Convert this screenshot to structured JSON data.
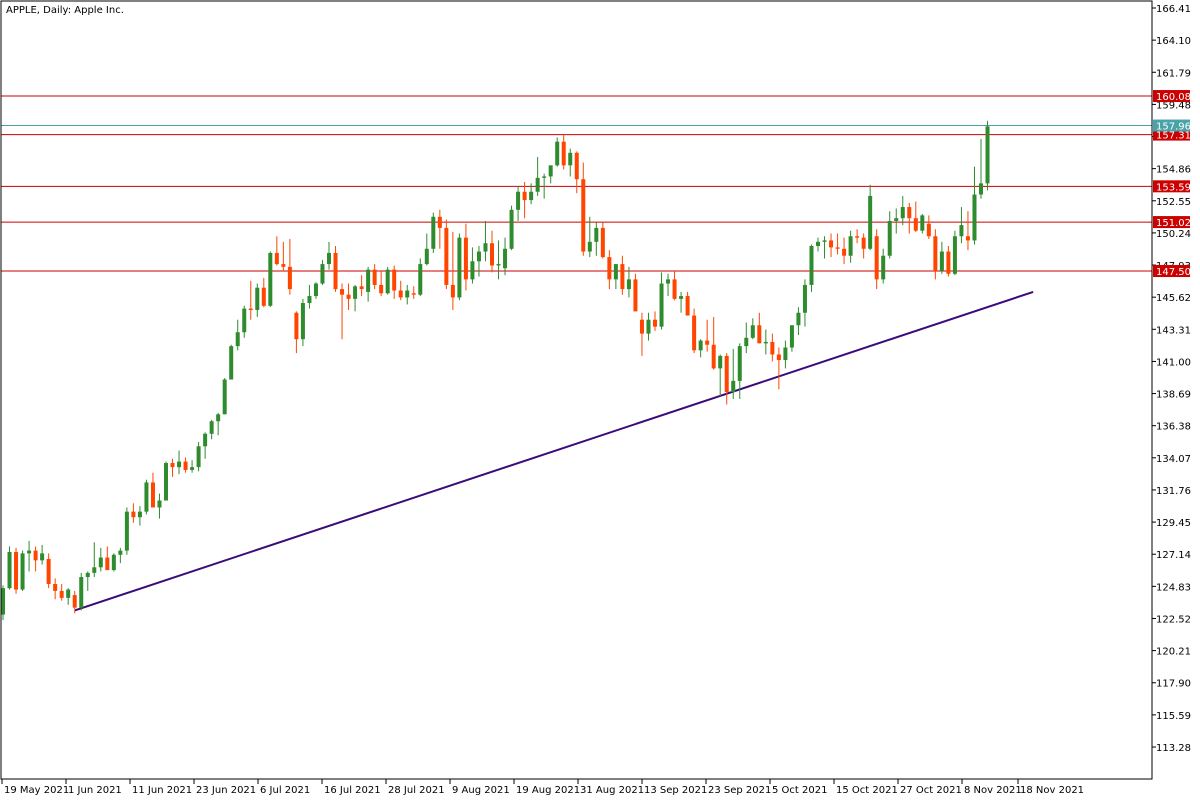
{
  "chart_data": {
    "type": "candlestick",
    "title": "APPLE, Daily:  Apple Inc.",
    "ylim": [
      111.0,
      167.2
    ],
    "y_ticks": [
      "166.41",
      "164.10",
      "161.79",
      "159.48",
      "157.17",
      "154.86",
      "152.55",
      "150.24",
      "147.93",
      "145.62",
      "143.31",
      "141.00",
      "138.69",
      "136.38",
      "134.07",
      "131.76",
      "129.45",
      "127.14",
      "124.83",
      "122.52",
      "120.21",
      "117.90",
      "115.59",
      "113.28"
    ],
    "x_labels": [
      "19 May 2021",
      "1 Jun 2021",
      "11 Jun 2021",
      "23 Jun 2021",
      "6 Jul 2021",
      "16 Jul 2021",
      "28 Jul 2021",
      "9 Aug 2021",
      "19 Aug 2021",
      "31 Aug 2021",
      "13 Sep 2021",
      "23 Sep 2021",
      "5 Oct 2021",
      "15 Oct 2021",
      "27 Oct 2021",
      "8 Nov 2021",
      "18 Nov 2021"
    ],
    "candles": [
      {
        "o": 122.8,
        "h": 124.9,
        "l": 122.4,
        "c": 124.7
      },
      {
        "o": 124.7,
        "h": 127.7,
        "l": 124.6,
        "c": 127.3
      },
      {
        "o": 127.3,
        "h": 127.6,
        "l": 124.3,
        "c": 124.6
      },
      {
        "o": 124.6,
        "h": 127.4,
        "l": 124.5,
        "c": 127.2
      },
      {
        "o": 127.2,
        "h": 128.1,
        "l": 125.9,
        "c": 127.4
      },
      {
        "o": 127.4,
        "h": 127.7,
        "l": 125.9,
        "c": 126.7
      },
      {
        "o": 126.7,
        "h": 127.8,
        "l": 126.4,
        "c": 127.2
      },
      {
        "o": 126.8,
        "h": 127.2,
        "l": 124.7,
        "c": 125.0
      },
      {
        "o": 125.0,
        "h": 125.4,
        "l": 123.9,
        "c": 124.5
      },
      {
        "o": 124.5,
        "h": 125.0,
        "l": 123.8,
        "c": 124.0
      },
      {
        "o": 124.0,
        "h": 124.7,
        "l": 123.5,
        "c": 124.6
      },
      {
        "o": 124.2,
        "h": 124.5,
        "l": 122.9,
        "c": 123.3
      },
      {
        "o": 123.3,
        "h": 125.8,
        "l": 123.1,
        "c": 125.5
      },
      {
        "o": 125.5,
        "h": 125.9,
        "l": 124.5,
        "c": 125.8
      },
      {
        "o": 125.8,
        "h": 128.0,
        "l": 125.5,
        "c": 126.2
      },
      {
        "o": 126.2,
        "h": 127.6,
        "l": 125.9,
        "c": 126.9
      },
      {
        "o": 126.9,
        "h": 127.7,
        "l": 126.0,
        "c": 126.0
      },
      {
        "o": 126.0,
        "h": 127.2,
        "l": 125.9,
        "c": 127.1
      },
      {
        "o": 127.1,
        "h": 127.6,
        "l": 126.5,
        "c": 127.4
      },
      {
        "o": 127.4,
        "h": 130.5,
        "l": 127.1,
        "c": 130.2
      },
      {
        "o": 130.2,
        "h": 130.8,
        "l": 129.4,
        "c": 129.8
      },
      {
        "o": 129.8,
        "h": 130.6,
        "l": 129.2,
        "c": 130.2
      },
      {
        "o": 130.2,
        "h": 132.5,
        "l": 130.0,
        "c": 132.3
      },
      {
        "o": 132.3,
        "h": 133.0,
        "l": 130.6,
        "c": 130.5
      },
      {
        "o": 130.5,
        "h": 131.5,
        "l": 129.7,
        "c": 131.0
      },
      {
        "o": 131.0,
        "h": 133.8,
        "l": 131.0,
        "c": 133.7
      },
      {
        "o": 133.7,
        "h": 134.0,
        "l": 132.7,
        "c": 133.4
      },
      {
        "o": 133.4,
        "h": 134.6,
        "l": 132.9,
        "c": 133.8
      },
      {
        "o": 133.8,
        "h": 134.1,
        "l": 133.0,
        "c": 133.2
      },
      {
        "o": 133.2,
        "h": 133.9,
        "l": 133.0,
        "c": 133.4
      },
      {
        "o": 133.4,
        "h": 135.2,
        "l": 133.1,
        "c": 134.9
      },
      {
        "o": 134.9,
        "h": 135.9,
        "l": 134.0,
        "c": 135.8
      },
      {
        "o": 135.8,
        "h": 136.8,
        "l": 135.4,
        "c": 136.7
      },
      {
        "o": 136.7,
        "h": 137.3,
        "l": 135.7,
        "c": 137.2
      },
      {
        "o": 137.2,
        "h": 139.8,
        "l": 137.2,
        "c": 139.7
      },
      {
        "o": 139.7,
        "h": 142.2,
        "l": 139.7,
        "c": 142.1
      },
      {
        "o": 142.1,
        "h": 144.0,
        "l": 141.8,
        "c": 143.1
      },
      {
        "o": 143.1,
        "h": 145.0,
        "l": 142.7,
        "c": 144.8
      },
      {
        "o": 144.8,
        "h": 146.8,
        "l": 144.0,
        "c": 144.7
      },
      {
        "o": 144.7,
        "h": 146.6,
        "l": 144.2,
        "c": 146.3
      },
      {
        "o": 146.3,
        "h": 147.0,
        "l": 144.9,
        "c": 145.0
      },
      {
        "o": 145.0,
        "h": 148.9,
        "l": 144.9,
        "c": 148.8
      },
      {
        "o": 148.8,
        "h": 150.0,
        "l": 147.9,
        "c": 148.0
      },
      {
        "o": 148.0,
        "h": 149.6,
        "l": 147.5,
        "c": 147.8
      },
      {
        "o": 147.8,
        "h": 149.8,
        "l": 145.8,
        "c": 146.2
      },
      {
        "o": 144.5,
        "h": 144.6,
        "l": 141.6,
        "c": 142.6
      },
      {
        "o": 142.6,
        "h": 145.5,
        "l": 142.1,
        "c": 145.2
      },
      {
        "o": 145.2,
        "h": 146.5,
        "l": 144.8,
        "c": 145.7
      },
      {
        "o": 145.7,
        "h": 146.7,
        "l": 145.5,
        "c": 146.6
      },
      {
        "o": 146.6,
        "h": 148.3,
        "l": 146.5,
        "c": 148.0
      },
      {
        "o": 148.0,
        "h": 149.6,
        "l": 147.6,
        "c": 148.8
      },
      {
        "o": 148.8,
        "h": 149.3,
        "l": 146.0,
        "c": 146.2
      },
      {
        "o": 146.2,
        "h": 146.6,
        "l": 142.6,
        "c": 145.8
      },
      {
        "o": 145.8,
        "h": 146.6,
        "l": 144.7,
        "c": 145.5
      },
      {
        "o": 145.5,
        "h": 146.5,
        "l": 144.6,
        "c": 146.4
      },
      {
        "o": 146.4,
        "h": 147.2,
        "l": 145.7,
        "c": 146.2
      },
      {
        "o": 146.0,
        "h": 147.8,
        "l": 145.3,
        "c": 147.6
      },
      {
        "o": 147.6,
        "h": 148.0,
        "l": 146.2,
        "c": 146.5
      },
      {
        "o": 146.5,
        "h": 147.5,
        "l": 145.7,
        "c": 145.9
      },
      {
        "o": 145.9,
        "h": 147.8,
        "l": 145.8,
        "c": 147.6
      },
      {
        "o": 147.6,
        "h": 147.9,
        "l": 145.5,
        "c": 146.1
      },
      {
        "o": 146.1,
        "h": 146.8,
        "l": 145.4,
        "c": 145.6
      },
      {
        "o": 145.6,
        "h": 146.5,
        "l": 145.1,
        "c": 146.1
      },
      {
        "o": 145.9,
        "h": 146.4,
        "l": 145.5,
        "c": 145.8
      },
      {
        "o": 145.8,
        "h": 148.4,
        "l": 145.7,
        "c": 148.0
      },
      {
        "o": 148.0,
        "h": 150.2,
        "l": 147.9,
        "c": 149.1
      },
      {
        "o": 149.1,
        "h": 151.7,
        "l": 148.8,
        "c": 151.4
      },
      {
        "o": 151.4,
        "h": 151.9,
        "l": 149.1,
        "c": 150.6
      },
      {
        "o": 150.6,
        "h": 151.2,
        "l": 146.2,
        "c": 146.5
      },
      {
        "o": 146.5,
        "h": 150.3,
        "l": 144.7,
        "c": 145.6
      },
      {
        "o": 145.6,
        "h": 150.2,
        "l": 145.4,
        "c": 149.9
      },
      {
        "o": 149.9,
        "h": 150.9,
        "l": 146.1,
        "c": 146.9
      },
      {
        "o": 146.9,
        "h": 149.2,
        "l": 146.6,
        "c": 148.2
      },
      {
        "o": 148.2,
        "h": 149.3,
        "l": 147.1,
        "c": 148.9
      },
      {
        "o": 148.9,
        "h": 151.1,
        "l": 148.2,
        "c": 149.5
      },
      {
        "o": 149.5,
        "h": 150.4,
        "l": 147.4,
        "c": 147.9
      },
      {
        "o": 147.9,
        "h": 149.7,
        "l": 146.9,
        "c": 148.0
      },
      {
        "o": 147.7,
        "h": 149.9,
        "l": 147.2,
        "c": 149.1
      },
      {
        "o": 149.1,
        "h": 152.2,
        "l": 149.0,
        "c": 151.9
      },
      {
        "o": 151.9,
        "h": 153.6,
        "l": 151.1,
        "c": 153.2
      },
      {
        "o": 153.2,
        "h": 153.9,
        "l": 151.3,
        "c": 152.6
      },
      {
        "o": 152.6,
        "h": 153.8,
        "l": 152.3,
        "c": 153.2
      },
      {
        "o": 153.2,
        "h": 155.7,
        "l": 152.9,
        "c": 154.2
      },
      {
        "o": 154.2,
        "h": 154.5,
        "l": 152.7,
        "c": 154.3
      },
      {
        "o": 154.3,
        "h": 155.0,
        "l": 153.8,
        "c": 155.1
      },
      {
        "o": 155.1,
        "h": 157.1,
        "l": 155.0,
        "c": 156.8
      },
      {
        "o": 156.8,
        "h": 157.3,
        "l": 154.8,
        "c": 155.1
      },
      {
        "o": 155.1,
        "h": 156.3,
        "l": 154.3,
        "c": 156.0
      },
      {
        "o": 156.0,
        "h": 156.1,
        "l": 153.1,
        "c": 154.1
      },
      {
        "o": 154.1,
        "h": 155.3,
        "l": 148.6,
        "c": 148.9
      },
      {
        "o": 148.9,
        "h": 151.4,
        "l": 148.5,
        "c": 149.6
      },
      {
        "o": 149.6,
        "h": 151.0,
        "l": 148.6,
        "c": 150.6
      },
      {
        "o": 150.6,
        "h": 151.0,
        "l": 148.4,
        "c": 148.5
      },
      {
        "o": 148.5,
        "h": 149.0,
        "l": 146.2,
        "c": 146.9
      },
      {
        "o": 146.9,
        "h": 148.0,
        "l": 146.2,
        "c": 148.0
      },
      {
        "o": 148.0,
        "h": 148.6,
        "l": 145.8,
        "c": 146.2
      },
      {
        "o": 146.2,
        "h": 147.8,
        "l": 145.6,
        "c": 146.9
      },
      {
        "o": 146.9,
        "h": 147.3,
        "l": 144.6,
        "c": 144.6
      },
      {
        "o": 144.0,
        "h": 144.5,
        "l": 141.4,
        "c": 143.0
      },
      {
        "o": 143.0,
        "h": 144.5,
        "l": 142.5,
        "c": 144.0
      },
      {
        "o": 144.0,
        "h": 144.6,
        "l": 143.2,
        "c": 143.5
      },
      {
        "o": 143.5,
        "h": 147.4,
        "l": 143.3,
        "c": 146.6
      },
      {
        "o": 146.6,
        "h": 147.3,
        "l": 145.7,
        "c": 146.9
      },
      {
        "o": 146.9,
        "h": 147.5,
        "l": 145.4,
        "c": 145.5
      },
      {
        "o": 145.5,
        "h": 146.0,
        "l": 144.5,
        "c": 145.7
      },
      {
        "o": 145.7,
        "h": 146.0,
        "l": 144.3,
        "c": 144.3
      },
      {
        "o": 144.3,
        "h": 144.8,
        "l": 141.6,
        "c": 141.8
      },
      {
        "o": 141.8,
        "h": 142.6,
        "l": 141.3,
        "c": 142.5
      },
      {
        "o": 142.5,
        "h": 144.0,
        "l": 141.7,
        "c": 142.2
      },
      {
        "o": 142.2,
        "h": 144.2,
        "l": 140.4,
        "c": 140.5
      },
      {
        "o": 140.5,
        "h": 141.5,
        "l": 138.5,
        "c": 141.4
      },
      {
        "o": 141.4,
        "h": 141.6,
        "l": 137.9,
        "c": 138.8
      },
      {
        "o": 138.8,
        "h": 141.9,
        "l": 138.3,
        "c": 139.6
      },
      {
        "o": 139.6,
        "h": 142.3,
        "l": 138.3,
        "c": 142.1
      },
      {
        "o": 142.1,
        "h": 143.8,
        "l": 141.6,
        "c": 142.7
      },
      {
        "o": 142.7,
        "h": 144.1,
        "l": 142.6,
        "c": 143.6
      },
      {
        "o": 143.6,
        "h": 144.5,
        "l": 142.3,
        "c": 142.3
      },
      {
        "o": 142.3,
        "h": 143.3,
        "l": 141.5,
        "c": 142.4
      },
      {
        "o": 142.4,
        "h": 143.0,
        "l": 141.0,
        "c": 141.5
      },
      {
        "o": 141.5,
        "h": 142.0,
        "l": 139.0,
        "c": 141.1
      },
      {
        "o": 141.1,
        "h": 142.5,
        "l": 140.5,
        "c": 142.0
      },
      {
        "o": 142.0,
        "h": 143.6,
        "l": 141.7,
        "c": 143.6
      },
      {
        "o": 143.6,
        "h": 144.9,
        "l": 142.9,
        "c": 144.5
      },
      {
        "o": 144.5,
        "h": 146.9,
        "l": 143.5,
        "c": 146.5
      },
      {
        "o": 146.5,
        "h": 149.4,
        "l": 146.0,
        "c": 149.3
      },
      {
        "o": 149.3,
        "h": 149.9,
        "l": 148.9,
        "c": 149.6
      },
      {
        "o": 149.6,
        "h": 150.0,
        "l": 148.4,
        "c": 149.7
      },
      {
        "o": 149.7,
        "h": 150.2,
        "l": 148.5,
        "c": 149.2
      },
      {
        "o": 149.2,
        "h": 150.2,
        "l": 148.7,
        "c": 149.1
      },
      {
        "o": 149.1,
        "h": 149.9,
        "l": 148.0,
        "c": 148.6
      },
      {
        "o": 148.6,
        "h": 150.4,
        "l": 148.1,
        "c": 150.0
      },
      {
        "o": 150.0,
        "h": 150.5,
        "l": 149.5,
        "c": 149.9
      },
      {
        "o": 149.9,
        "h": 150.2,
        "l": 148.4,
        "c": 149.1
      },
      {
        "o": 149.1,
        "h": 153.7,
        "l": 149.0,
        "c": 152.9
      },
      {
        "o": 150.0,
        "h": 150.5,
        "l": 146.2,
        "c": 146.9
      },
      {
        "o": 146.9,
        "h": 149.1,
        "l": 146.6,
        "c": 148.6
      },
      {
        "o": 148.6,
        "h": 151.8,
        "l": 148.4,
        "c": 151.1
      },
      {
        "o": 151.1,
        "h": 152.0,
        "l": 150.2,
        "c": 151.3
      },
      {
        "o": 151.3,
        "h": 152.9,
        "l": 150.8,
        "c": 152.1
      },
      {
        "o": 152.1,
        "h": 152.4,
        "l": 150.2,
        "c": 151.3
      },
      {
        "o": 151.3,
        "h": 152.5,
        "l": 150.3,
        "c": 150.4
      },
      {
        "o": 150.4,
        "h": 151.6,
        "l": 150.2,
        "c": 151.5
      },
      {
        "o": 150.9,
        "h": 151.5,
        "l": 149.8,
        "c": 150.0
      },
      {
        "o": 150.0,
        "h": 150.5,
        "l": 146.9,
        "c": 147.5
      },
      {
        "o": 147.5,
        "h": 149.6,
        "l": 147.3,
        "c": 148.9
      },
      {
        "o": 148.9,
        "h": 149.3,
        "l": 147.1,
        "c": 147.3
      },
      {
        "o": 147.3,
        "h": 150.4,
        "l": 147.2,
        "c": 150.0
      },
      {
        "o": 150.0,
        "h": 152.1,
        "l": 149.5,
        "c": 150.8
      },
      {
        "o": 150.0,
        "h": 151.8,
        "l": 149.0,
        "c": 149.7
      },
      {
        "o": 149.7,
        "h": 155.0,
        "l": 149.4,
        "c": 153.0
      },
      {
        "o": 153.0,
        "h": 157.0,
        "l": 152.7,
        "c": 153.8
      },
      {
        "o": 153.8,
        "h": 158.3,
        "l": 153.3,
        "c": 157.9
      }
    ],
    "trendline": {
      "from": {
        "index": 11,
        "price": 123.1
      },
      "to": {
        "index": 158,
        "price": 146.0
      }
    },
    "levels": [
      {
        "label": "160.08",
        "price": 160.08,
        "color": "#cc0000"
      },
      {
        "label": "157.31",
        "price": 157.31,
        "color": "#cc0000"
      },
      {
        "label": "153.59",
        "price": 153.59,
        "color": "#cc0000"
      },
      {
        "label": "151.02",
        "price": 151.02,
        "color": "#cc0000"
      },
      {
        "label": "147.50",
        "price": 147.5,
        "color": "#cc0000"
      }
    ],
    "current_price": {
      "label": "157.96",
      "price": 157.96,
      "color": "#4aa3a8"
    },
    "colors": {
      "bull": "#2e8b2e",
      "bear": "#ff4500",
      "trend": "#3d0a7a",
      "axis": "#000000"
    },
    "grid": false
  }
}
